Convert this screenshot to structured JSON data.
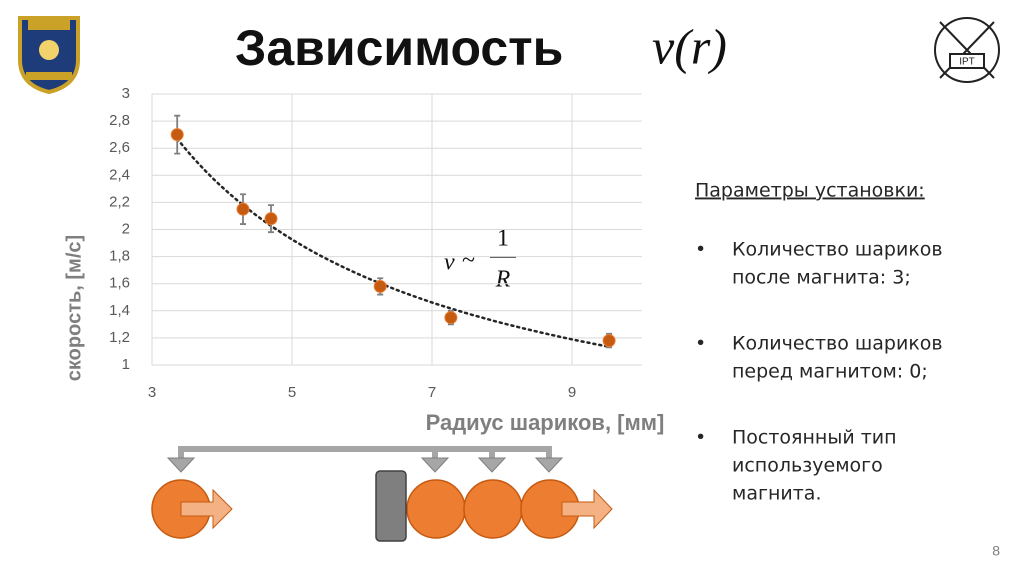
{
  "chart_data": {
    "type": "scatter",
    "x_label": "Радиус шариков, [мм]",
    "y_label": "скорость, [м/с]",
    "x": [
      3.36,
      4.3,
      4.7,
      6.26,
      7.27,
      9.53
    ],
    "values": [
      2.7,
      2.15,
      2.08,
      1.58,
      1.35,
      1.18
    ],
    "errors": [
      0.14,
      0.11,
      0.1,
      0.06,
      0.05,
      0.05
    ],
    "color": "#c55a11",
    "error_color": "#7f7f7f",
    "trendline": "power",
    "trendline_color": "#262626",
    "xlim": [
      3,
      10
    ],
    "ylim": [
      1,
      3
    ],
    "xticks": [
      3,
      5,
      7,
      9
    ],
    "yticks": [
      1,
      {
        "value": 1.2,
        "label": "1,2"
      },
      {
        "value": 1.4,
        "label": "1,4"
      },
      {
        "value": 1.6,
        "label": "1,6"
      },
      {
        "value": 1.8,
        "label": "1,8"
      },
      2,
      {
        "value": 2.2,
        "label": "2,2"
      },
      {
        "value": 2.4,
        "label": "2,4"
      },
      {
        "value": 2.6,
        "label": "2,6"
      },
      {
        "value": 2.8,
        "label": "2,8"
      },
      3
    ],
    "grid": true,
    "annotation": {
      "lhs": "v",
      "op": "~",
      "numerator": "1",
      "denominator": "R"
    }
  },
  "slide": {
    "title": "Зависимость",
    "title_math": "v(r)",
    "params_heading": "Параметры установки:",
    "bullet": "•",
    "params": [
      [
        "Количество шариков",
        "после магнита: 3;"
      ],
      [
        "Количество шариков",
        "перед магнитом: 0;"
      ],
      [
        "Постоянный тип",
        "используемого",
        "магнита."
      ]
    ],
    "page_number": "8"
  }
}
